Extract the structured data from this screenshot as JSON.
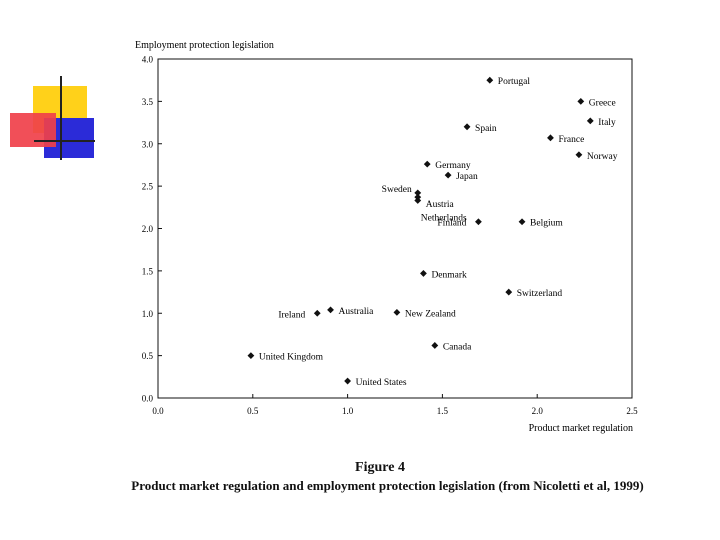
{
  "chart_data": {
    "type": "scatter",
    "title": "",
    "xlabel": "Product market regulation",
    "ylabel": "Employment protection legislation",
    "xlim": [
      0,
      2.5
    ],
    "ylim": [
      0,
      4.0
    ],
    "x_ticks": [
      "0.0",
      "0.5",
      "1.0",
      "1.5",
      "2.0",
      "2.5"
    ],
    "y_ticks": [
      "0.0",
      "0.5",
      "1.0",
      "1.5",
      "2.0",
      "2.5",
      "3.0",
      "3.5",
      "4.0"
    ],
    "grid": false,
    "points": [
      {
        "name": "Portugal",
        "x": 1.75,
        "y": 3.75
      },
      {
        "name": "Greece",
        "x": 2.23,
        "y": 3.5
      },
      {
        "name": "Italy",
        "x": 2.28,
        "y": 3.27
      },
      {
        "name": "Spain",
        "x": 1.63,
        "y": 3.2
      },
      {
        "name": "France",
        "x": 2.07,
        "y": 3.07
      },
      {
        "name": "Norway",
        "x": 2.22,
        "y": 2.87
      },
      {
        "name": "Germany",
        "x": 1.42,
        "y": 2.76
      },
      {
        "name": "Japan",
        "x": 1.53,
        "y": 2.63
      },
      {
        "name": "Sweden",
        "x": 1.37,
        "y": 2.42
      },
      {
        "name": "Austria",
        "x": 1.37,
        "y": 2.37
      },
      {
        "name": "Netherlands",
        "x": 1.37,
        "y": 2.33
      },
      {
        "name": "Finland",
        "x": 1.69,
        "y": 2.08
      },
      {
        "name": "Belgium",
        "x": 1.92,
        "y": 2.08
      },
      {
        "name": "Denmark",
        "x": 1.4,
        "y": 1.47
      },
      {
        "name": "Switzerland",
        "x": 1.85,
        "y": 1.25
      },
      {
        "name": "Australia",
        "x": 0.91,
        "y": 1.04
      },
      {
        "name": "Ireland",
        "x": 0.84,
        "y": 1.0
      },
      {
        "name": "New Zealand",
        "x": 1.26,
        "y": 1.01
      },
      {
        "name": "Canada",
        "x": 1.46,
        "y": 0.62
      },
      {
        "name": "United Kingdom",
        "x": 0.49,
        "y": 0.5
      },
      {
        "name": "United States",
        "x": 1.0,
        "y": 0.2
      }
    ]
  },
  "caption": {
    "figure": "Figure 4",
    "text": "Product market regulation and employment protection legislation  (from Nicoletti et al, 1999)"
  },
  "colors": {
    "yellow": "#ffd11a",
    "red": "#f0404a",
    "blue": "#2b2bd8"
  }
}
